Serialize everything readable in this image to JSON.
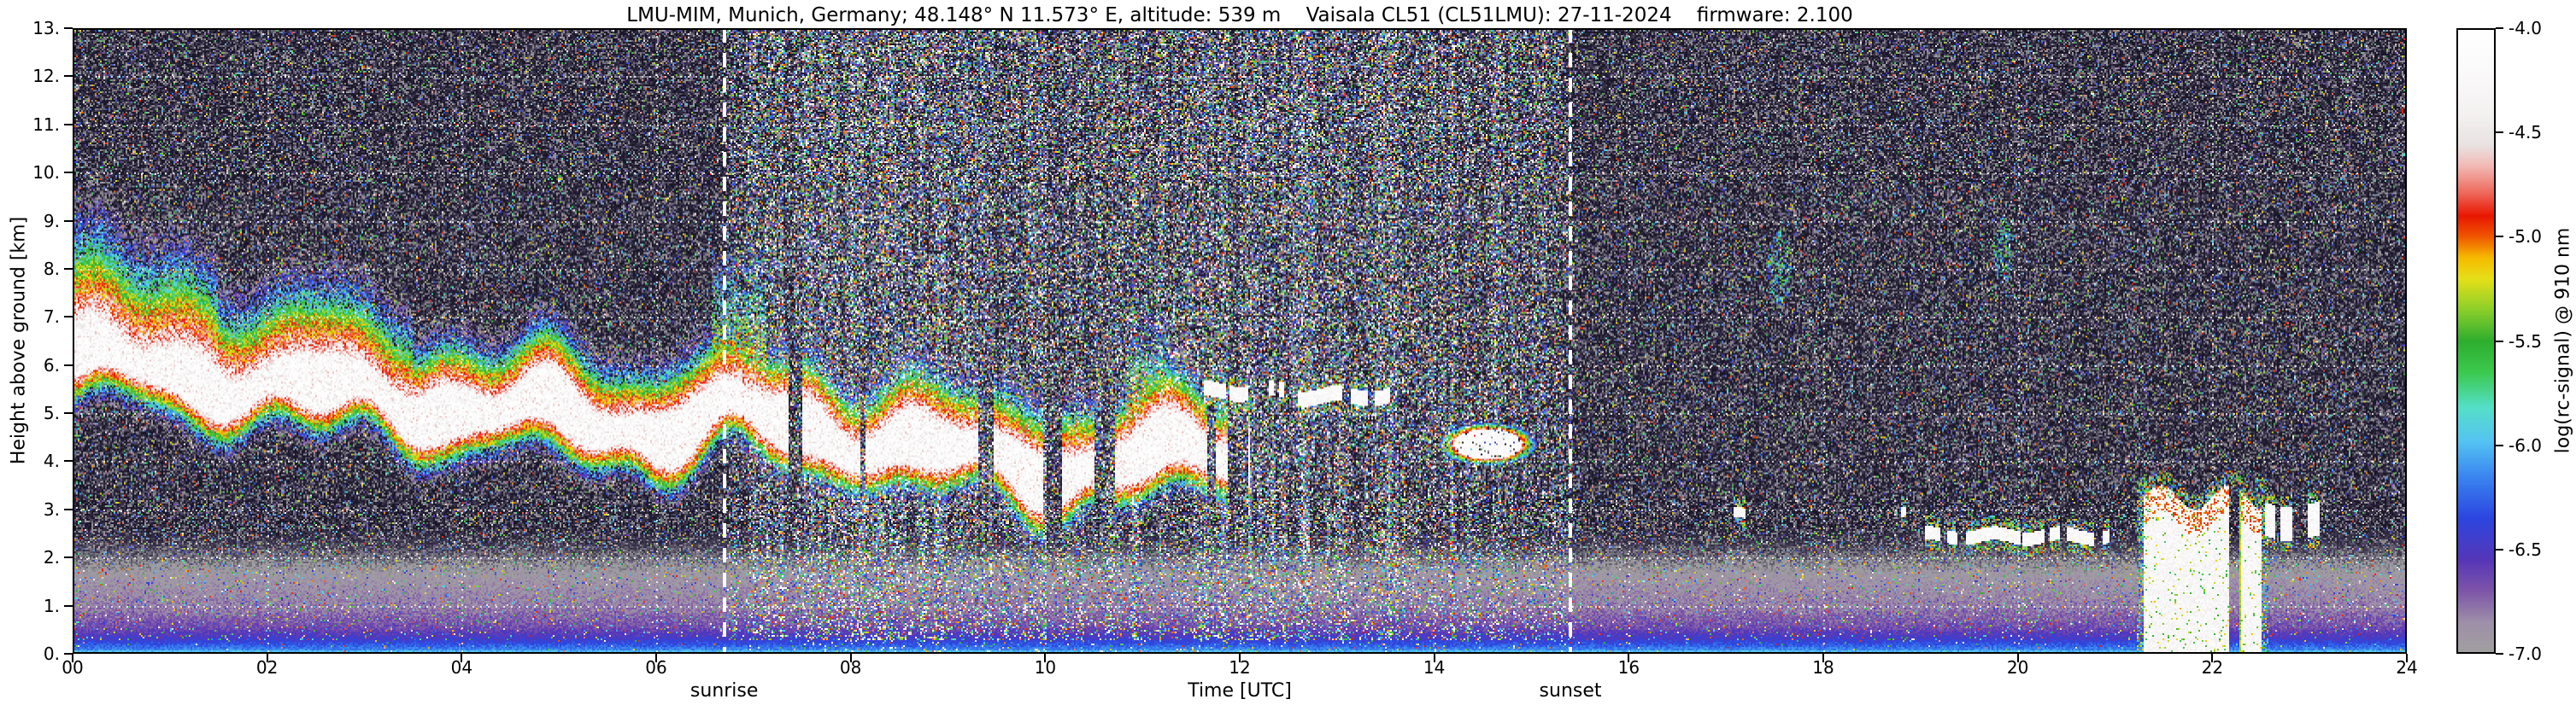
{
  "chart_data": {
    "type": "heatmap",
    "title": "LMU-MIM, Munich, Germany; 48.148° N 11.573° E, altitude: 539 m    Vaisala CL51 (CL51LMU): 27-11-2024    firmware: 2.100",
    "xlabel": "Time [UTC]",
    "ylabel": "Height above ground [km]",
    "colorbar_label": "log(rc-signal) @ 910 nm",
    "x_range_hours": [
      0,
      24
    ],
    "y_range_km": [
      0,
      13
    ],
    "color_range": [
      -7.0,
      -4.0
    ],
    "grid": true,
    "x_ticks": [
      "00",
      "02",
      "04",
      "06",
      "08",
      "10",
      "12",
      "14",
      "16",
      "18",
      "20",
      "22",
      "24"
    ],
    "y_ticks": [
      "0.",
      "1.",
      "2.",
      "3.",
      "4.",
      "5.",
      "6.",
      "7.",
      "8.",
      "9.",
      "10.",
      "11.",
      "12.",
      "13."
    ],
    "colorbar_ticks": [
      "-4.0",
      "-4.5",
      "-5.0",
      "-5.5",
      "-6.0",
      "-6.5",
      "-7.0"
    ],
    "annotations": {
      "sunrise": {
        "label": "sunrise",
        "time_utc": 6.7
      },
      "sunset": {
        "label": "sunset",
        "time_utc": 15.4
      }
    },
    "colormap_stops": [
      [
        -7.0,
        "#a0a0a0"
      ],
      [
        -6.85,
        "#9e8fa8"
      ],
      [
        -6.7,
        "#7d55a8"
      ],
      [
        -6.55,
        "#5636b8"
      ],
      [
        -6.35,
        "#2c46e0"
      ],
      [
        -6.15,
        "#3a86f0"
      ],
      [
        -5.98,
        "#55c4f2"
      ],
      [
        -5.82,
        "#55dfc8"
      ],
      [
        -5.65,
        "#3cc94f"
      ],
      [
        -5.5,
        "#2eae2e"
      ],
      [
        -5.35,
        "#8ccf2b"
      ],
      [
        -5.2,
        "#e6e018"
      ],
      [
        -5.1,
        "#f6ba00"
      ],
      [
        -5.0,
        "#f05800"
      ],
      [
        -4.9,
        "#e81600"
      ],
      [
        -4.78,
        "#ee6e62"
      ],
      [
        -4.66,
        "#f2b9b4"
      ],
      [
        -4.56,
        "#e9e2e2"
      ],
      [
        -4.42,
        "#f3f0f0"
      ],
      [
        -4.2,
        "#fbfafa"
      ],
      [
        -4.0,
        "#ffffff"
      ]
    ],
    "background_stops": [
      [
        -7.6,
        "#141220"
      ],
      [
        -7.4,
        "#1e1a2e"
      ],
      [
        -7.2,
        "#403a52"
      ],
      [
        -7.0,
        "#a0a0a0"
      ]
    ],
    "features": {
      "boundary_layer": {
        "profile": [
          [
            0.0,
            -6.0
          ],
          [
            0.12,
            -6.2
          ],
          [
            0.3,
            -6.45
          ],
          [
            0.55,
            -6.66
          ],
          [
            0.95,
            -6.8
          ],
          [
            1.55,
            -6.9
          ],
          [
            2.1,
            -7.15
          ],
          [
            2.6,
            -7.4
          ]
        ]
      },
      "descending_layer": {
        "path": [
          [
            0,
            6.15
          ],
          [
            1,
            5.9
          ],
          [
            2,
            5.55
          ],
          [
            3,
            5.45
          ],
          [
            4,
            5.05
          ],
          [
            5,
            5.0
          ],
          [
            6,
            4.65
          ],
          [
            6.8,
            5.0
          ],
          [
            7.5,
            4.7
          ],
          [
            8.5,
            4.35
          ],
          [
            9.5,
            4.0
          ],
          [
            10.3,
            3.85
          ],
          [
            11.0,
            4.05
          ],
          [
            11.9,
            4.2
          ]
        ],
        "core_halfwidth_km": 0.42,
        "fade_above_km": 1.5,
        "fade_below_km": 0.9,
        "broken_after_h": 7.3
      },
      "plumes": [
        {
          "t": 6.85,
          "halfspan_h": 0.28,
          "top_km": 8.3
        },
        {
          "t": 11.05,
          "halfspan_h": 0.22,
          "top_km": 7.0
        }
      ],
      "cloud_streaks": [
        {
          "t_start": 11.55,
          "t_end": 12.45,
          "height_km": 5.45,
          "thickness_km": 0.16
        },
        {
          "t_start": 12.6,
          "t_end": 13.55,
          "height_km": 5.35,
          "thickness_km": 0.16
        },
        {
          "t_start": 17.08,
          "t_end": 17.2,
          "height_km": 2.9,
          "thickness_km": 0.1
        },
        {
          "t_start": 18.8,
          "t_end": 18.97,
          "height_km": 3.0,
          "thickness_km": 0.1
        },
        {
          "t_start": 19.05,
          "t_end": 20.95,
          "height_km": 2.45,
          "thickness_km": 0.14
        },
        {
          "t_start": 22.55,
          "t_end": 23.1,
          "height_km": 2.75,
          "thickness_km": 0.35
        }
      ],
      "cloud_patches": [
        {
          "t_center": 14.55,
          "halfspan_h": 0.5,
          "height_km": 4.35,
          "v_extent_km": 0.45
        }
      ],
      "precipitation_event": {
        "t_start": 21.3,
        "t_end": 22.5,
        "top_km": 3.25,
        "bottom_km": 0.0,
        "gap_t": [
          22.18,
          22.3
        ]
      },
      "speckle_patches": [
        {
          "t": 17.55,
          "height_km": 8.0,
          "halfspan_h": 0.12,
          "v_extent_km": 0.8
        },
        {
          "t": 19.85,
          "height_km": 8.4,
          "halfspan_h": 0.1,
          "v_extent_km": 0.7
        }
      ],
      "noise": {
        "night_salt_prob": 0.1,
        "day_salt_prob": 0.46,
        "night_amp": 2.6,
        "day_amp": 3.25
      }
    }
  }
}
